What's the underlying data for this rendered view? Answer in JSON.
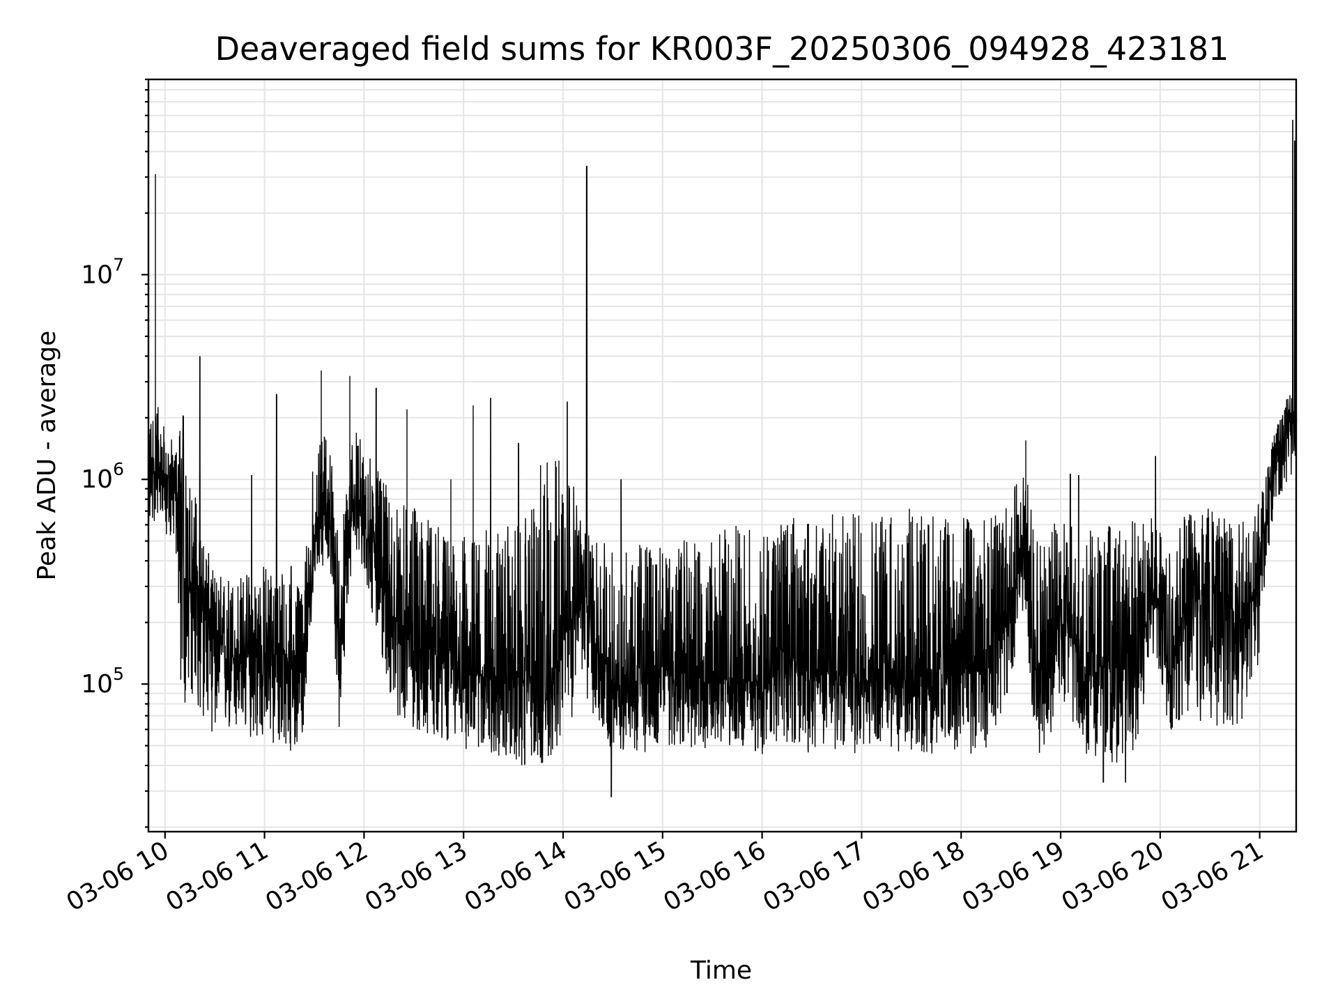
{
  "chart_data": {
    "type": "line",
    "title": "Deaveraged field sums for KR003F_20250306_094928_423181",
    "xlabel": "Time",
    "ylabel": "Peak ADU - average",
    "x_tick_labels": [
      "03-06 10",
      "03-06 11",
      "03-06 12",
      "03-06 13",
      "03-06 14",
      "03-06 15",
      "03-06 16",
      "03-06 17",
      "03-06 18",
      "03-06 19",
      "03-06 20",
      "03-06 21"
    ],
    "y_tick_labels": [
      {
        "base": "10",
        "exp": "5",
        "value": 100000
      },
      {
        "base": "10",
        "exp": "6",
        "value": 1000000
      },
      {
        "base": "10",
        "exp": "7",
        "value": 10000000
      }
    ],
    "x_range": [
      "2025-03-06 09:50",
      "2025-03-06 21:22"
    ],
    "ylim": [
      19000,
      90000000
    ],
    "yscale": "log",
    "grid": "major and minor",
    "line_color": "#000000",
    "series": [
      {
        "x_hours": [
          9.83,
          9.9,
          10.0,
          10.1,
          10.15,
          10.2,
          10.35,
          10.5,
          10.75,
          11.0,
          11.25,
          11.4,
          11.5,
          11.65,
          11.75,
          11.9,
          12.1,
          12.3,
          12.6,
          12.9,
          13.2,
          13.5,
          13.7,
          13.85,
          14.0,
          14.2,
          14.5,
          14.75,
          15.0,
          15.25,
          15.5,
          15.75,
          16.0,
          16.25,
          16.5,
          16.75,
          17.0,
          17.25,
          17.5,
          17.75,
          18.0,
          18.25,
          18.5,
          18.65,
          18.75,
          18.85,
          19.0,
          19.25,
          19.5,
          19.75,
          19.95,
          20.1,
          20.25,
          20.5,
          20.75,
          20.95,
          21.05,
          21.15,
          21.25,
          21.33,
          21.37
        ],
        "y_center": [
          900000,
          1100000,
          950000,
          900000,
          750000,
          300000,
          350000,
          150000,
          130000,
          140000,
          140000,
          130000,
          500000,
          800000,
          150000,
          800000,
          450000,
          200000,
          150000,
          120000,
          110000,
          110000,
          100000,
          80000,
          180000,
          250000,
          100000,
          100000,
          120000,
          110000,
          100000,
          110000,
          95000,
          140000,
          110000,
          120000,
          100000,
          130000,
          110000,
          120000,
          110000,
          120000,
          250000,
          450000,
          100000,
          100000,
          250000,
          110000,
          130000,
          120000,
          300000,
          100000,
          250000,
          300000,
          250000,
          250000,
          600000,
          1300000,
          1600000,
          2200000,
          1800000
        ],
        "y_lower": [
          550000,
          600000,
          500000,
          500000,
          100000,
          80000,
          70000,
          55000,
          55000,
          50000,
          45000,
          60000,
          350000,
          400000,
          60000,
          500000,
          200000,
          70000,
          55000,
          50000,
          45000,
          40000,
          40000,
          40000,
          55000,
          90000,
          45000,
          45000,
          50000,
          48000,
          48000,
          50000,
          45000,
          50000,
          45000,
          45000,
          45000,
          48000,
          45000,
          45000,
          45000,
          45000,
          100000,
          200000,
          45000,
          45000,
          90000,
          45000,
          40000,
          45000,
          150000,
          55000,
          60000,
          60000,
          60000,
          80000,
          300000,
          700000,
          900000,
          1000000,
          900000
        ],
        "y_upper": [
          2000000,
          2500000,
          1800000,
          1500000,
          2500000,
          2000000,
          600000,
          350000,
          350000,
          400000,
          400000,
          350000,
          1500000,
          1800000,
          500000,
          1800000,
          1200000,
          800000,
          700000,
          500000,
          600000,
          600000,
          800000,
          1800000,
          1600000,
          600000,
          450000,
          500000,
          550000,
          550000,
          600000,
          600000,
          600000,
          650000,
          700000,
          700000,
          700000,
          750000,
          750000,
          700000,
          650000,
          650000,
          800000,
          1400000,
          500000,
          500000,
          700000,
          600000,
          600000,
          650000,
          650000,
          450000,
          800000,
          800000,
          800000,
          700000,
          1000000,
          1800000,
          2200000,
          3500000,
          3000000
        ]
      }
    ],
    "spikes": [
      {
        "x_hour": 9.9,
        "value": 31000000
      },
      {
        "x_hour": 10.35,
        "value": 4000000
      },
      {
        "x_hour": 10.87,
        "value": 1050000
      },
      {
        "x_hour": 11.12,
        "value": 2600000
      },
      {
        "x_hour": 11.57,
        "value": 3400000
      },
      {
        "x_hour": 11.86,
        "value": 3200000
      },
      {
        "x_hour": 12.12,
        "value": 2800000
      },
      {
        "x_hour": 12.43,
        "value": 2200000
      },
      {
        "x_hour": 12.87,
        "value": 1000000
      },
      {
        "x_hour": 13.1,
        "value": 2300000
      },
      {
        "x_hour": 13.27,
        "value": 2500000
      },
      {
        "x_hour": 13.55,
        "value": 1500000
      },
      {
        "x_hour": 14.04,
        "value": 2400000
      },
      {
        "x_hour": 14.24,
        "value": 34000000
      },
      {
        "x_hour": 14.48,
        "value": 28000
      },
      {
        "x_hour": 14.58,
        "value": 1000000
      },
      {
        "x_hour": 18.65,
        "value": 1550000
      },
      {
        "x_hour": 19.1,
        "value": 1060000
      },
      {
        "x_hour": 19.18,
        "value": 1050000
      },
      {
        "x_hour": 19.43,
        "value": 33000
      },
      {
        "x_hour": 19.65,
        "value": 33000
      },
      {
        "x_hour": 19.95,
        "value": 1300000
      },
      {
        "x_hour": 21.33,
        "value": 57000000
      },
      {
        "x_hour": 21.35,
        "value": 45000000
      }
    ]
  }
}
